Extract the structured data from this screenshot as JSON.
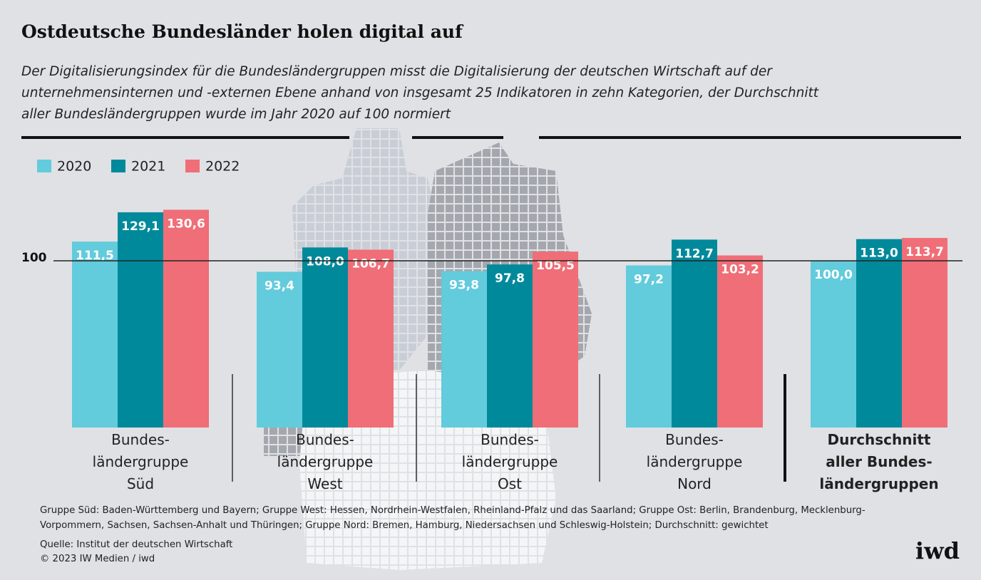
{
  "chart_data": {
    "type": "bar",
    "title": "Ostdeutsche Bundesländer holen digital auf",
    "subtitle": "Der Digitalisierungsindex für die Bundesländergruppen misst die Digitalisierung der deutschen Wirtschaft auf der\nunternehmensinternen und -externen Ebene anhand von insgesamt 25 Indikatoren in zehn Kategorien, der Durchschnitt\naller Bundesländergruppen wurde im Jahr 2020 auf 100 normiert",
    "categories": [
      "Bundes-\nländergruppe\nSüd",
      "Bundes-\nländergruppe\nWest",
      "Bundes-\nländergruppe\nOst",
      "Bundes-\nländergruppe\nNord",
      "Durchschnitt\naller Bundes-\nländergruppen"
    ],
    "series": [
      {
        "name": "2020",
        "color": "#62cbdc",
        "values": [
          111.5,
          93.4,
          93.8,
          97.2,
          100.0
        ],
        "value_labels": [
          "111,5",
          "93,4",
          "93,8",
          "97,2",
          "100,0"
        ]
      },
      {
        "name": "2021",
        "color": "#00899a",
        "values": [
          129.1,
          108.0,
          97.8,
          112.7,
          113.0
        ],
        "value_labels": [
          "129,1",
          "108,0",
          "97,8",
          "112,7",
          "113,0"
        ]
      },
      {
        "name": "2022",
        "color": "#f06e77",
        "values": [
          130.6,
          106.7,
          105.5,
          103.2,
          113.7
        ],
        "value_labels": [
          "130,6",
          "106,7",
          "105,5",
          "103,2",
          "113,7"
        ]
      }
    ],
    "ylim": [
      0,
      140
    ],
    "yticks": [
      100
    ]
  },
  "notes": "Gruppe Süd: Baden-Württemberg und Bayern; Gruppe West: Hessen, Nordrhein-Westfalen, Rheinland-Pfalz und das Saarland; Gruppe Ost: Berlin, Brandenburg, Mecklenburg-\nVorpommern, Sachsen, Sachsen-Anhalt und Thüringen; Gruppe Nord: Bremen, Hamburg, Niedersachsen und Schleswig-Holstein; Durchschnitt: gewichtet",
  "source": "Quelle: Institut der deutschen Wirtschaft",
  "copyright": "© 2023 IW Medien / iwd",
  "logo": "iwd"
}
